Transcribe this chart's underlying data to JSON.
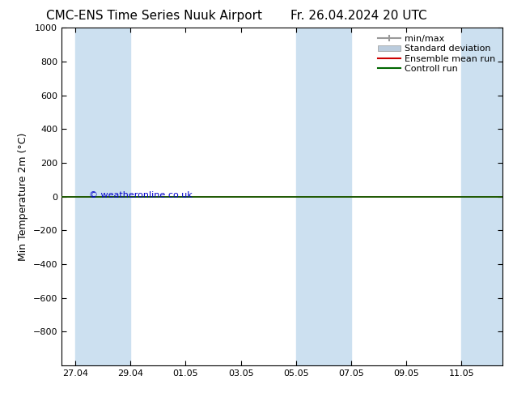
{
  "title_left": "CMC-ENS Time Series Nuuk Airport",
  "title_right": "Fr. 26.04.2024 20 UTC",
  "ylabel": "Min Temperature 2m (°C)",
  "watermark": "© weatheronline.co.uk",
  "ylim_top": -1000,
  "ylim_bottom": 1000,
  "yticks": [
    -800,
    -600,
    -400,
    -200,
    0,
    200,
    400,
    600,
    800,
    1000
  ],
  "x_dates": [
    "27.04",
    "29.04",
    "01.05",
    "03.05",
    "05.05",
    "07.05",
    "09.05",
    "11.05"
  ],
  "x_positions": [
    0,
    2,
    4,
    6,
    8,
    10,
    12,
    14
  ],
  "xlim": [
    -0.5,
    15.5
  ],
  "shade_ranges": [
    [
      0,
      2
    ],
    [
      8,
      10
    ],
    [
      14,
      15.5
    ]
  ],
  "control_run_y": 0,
  "ensemble_mean_y": 0,
  "bg_color": "#ffffff",
  "shade_color": "#cce0f0",
  "control_run_color": "#006600",
  "ensemble_mean_color": "#cc0000",
  "minmax_color": "#999999",
  "std_dev_color": "#bbccdd",
  "legend_items": [
    "min/max",
    "Standard deviation",
    "Ensemble mean run",
    "Controll run"
  ],
  "legend_line_colors": [
    "#999999",
    "#aabbcc",
    "#cc0000",
    "#006600"
  ],
  "title_fontsize": 11,
  "ylabel_fontsize": 9,
  "tick_fontsize": 8,
  "legend_fontsize": 8
}
